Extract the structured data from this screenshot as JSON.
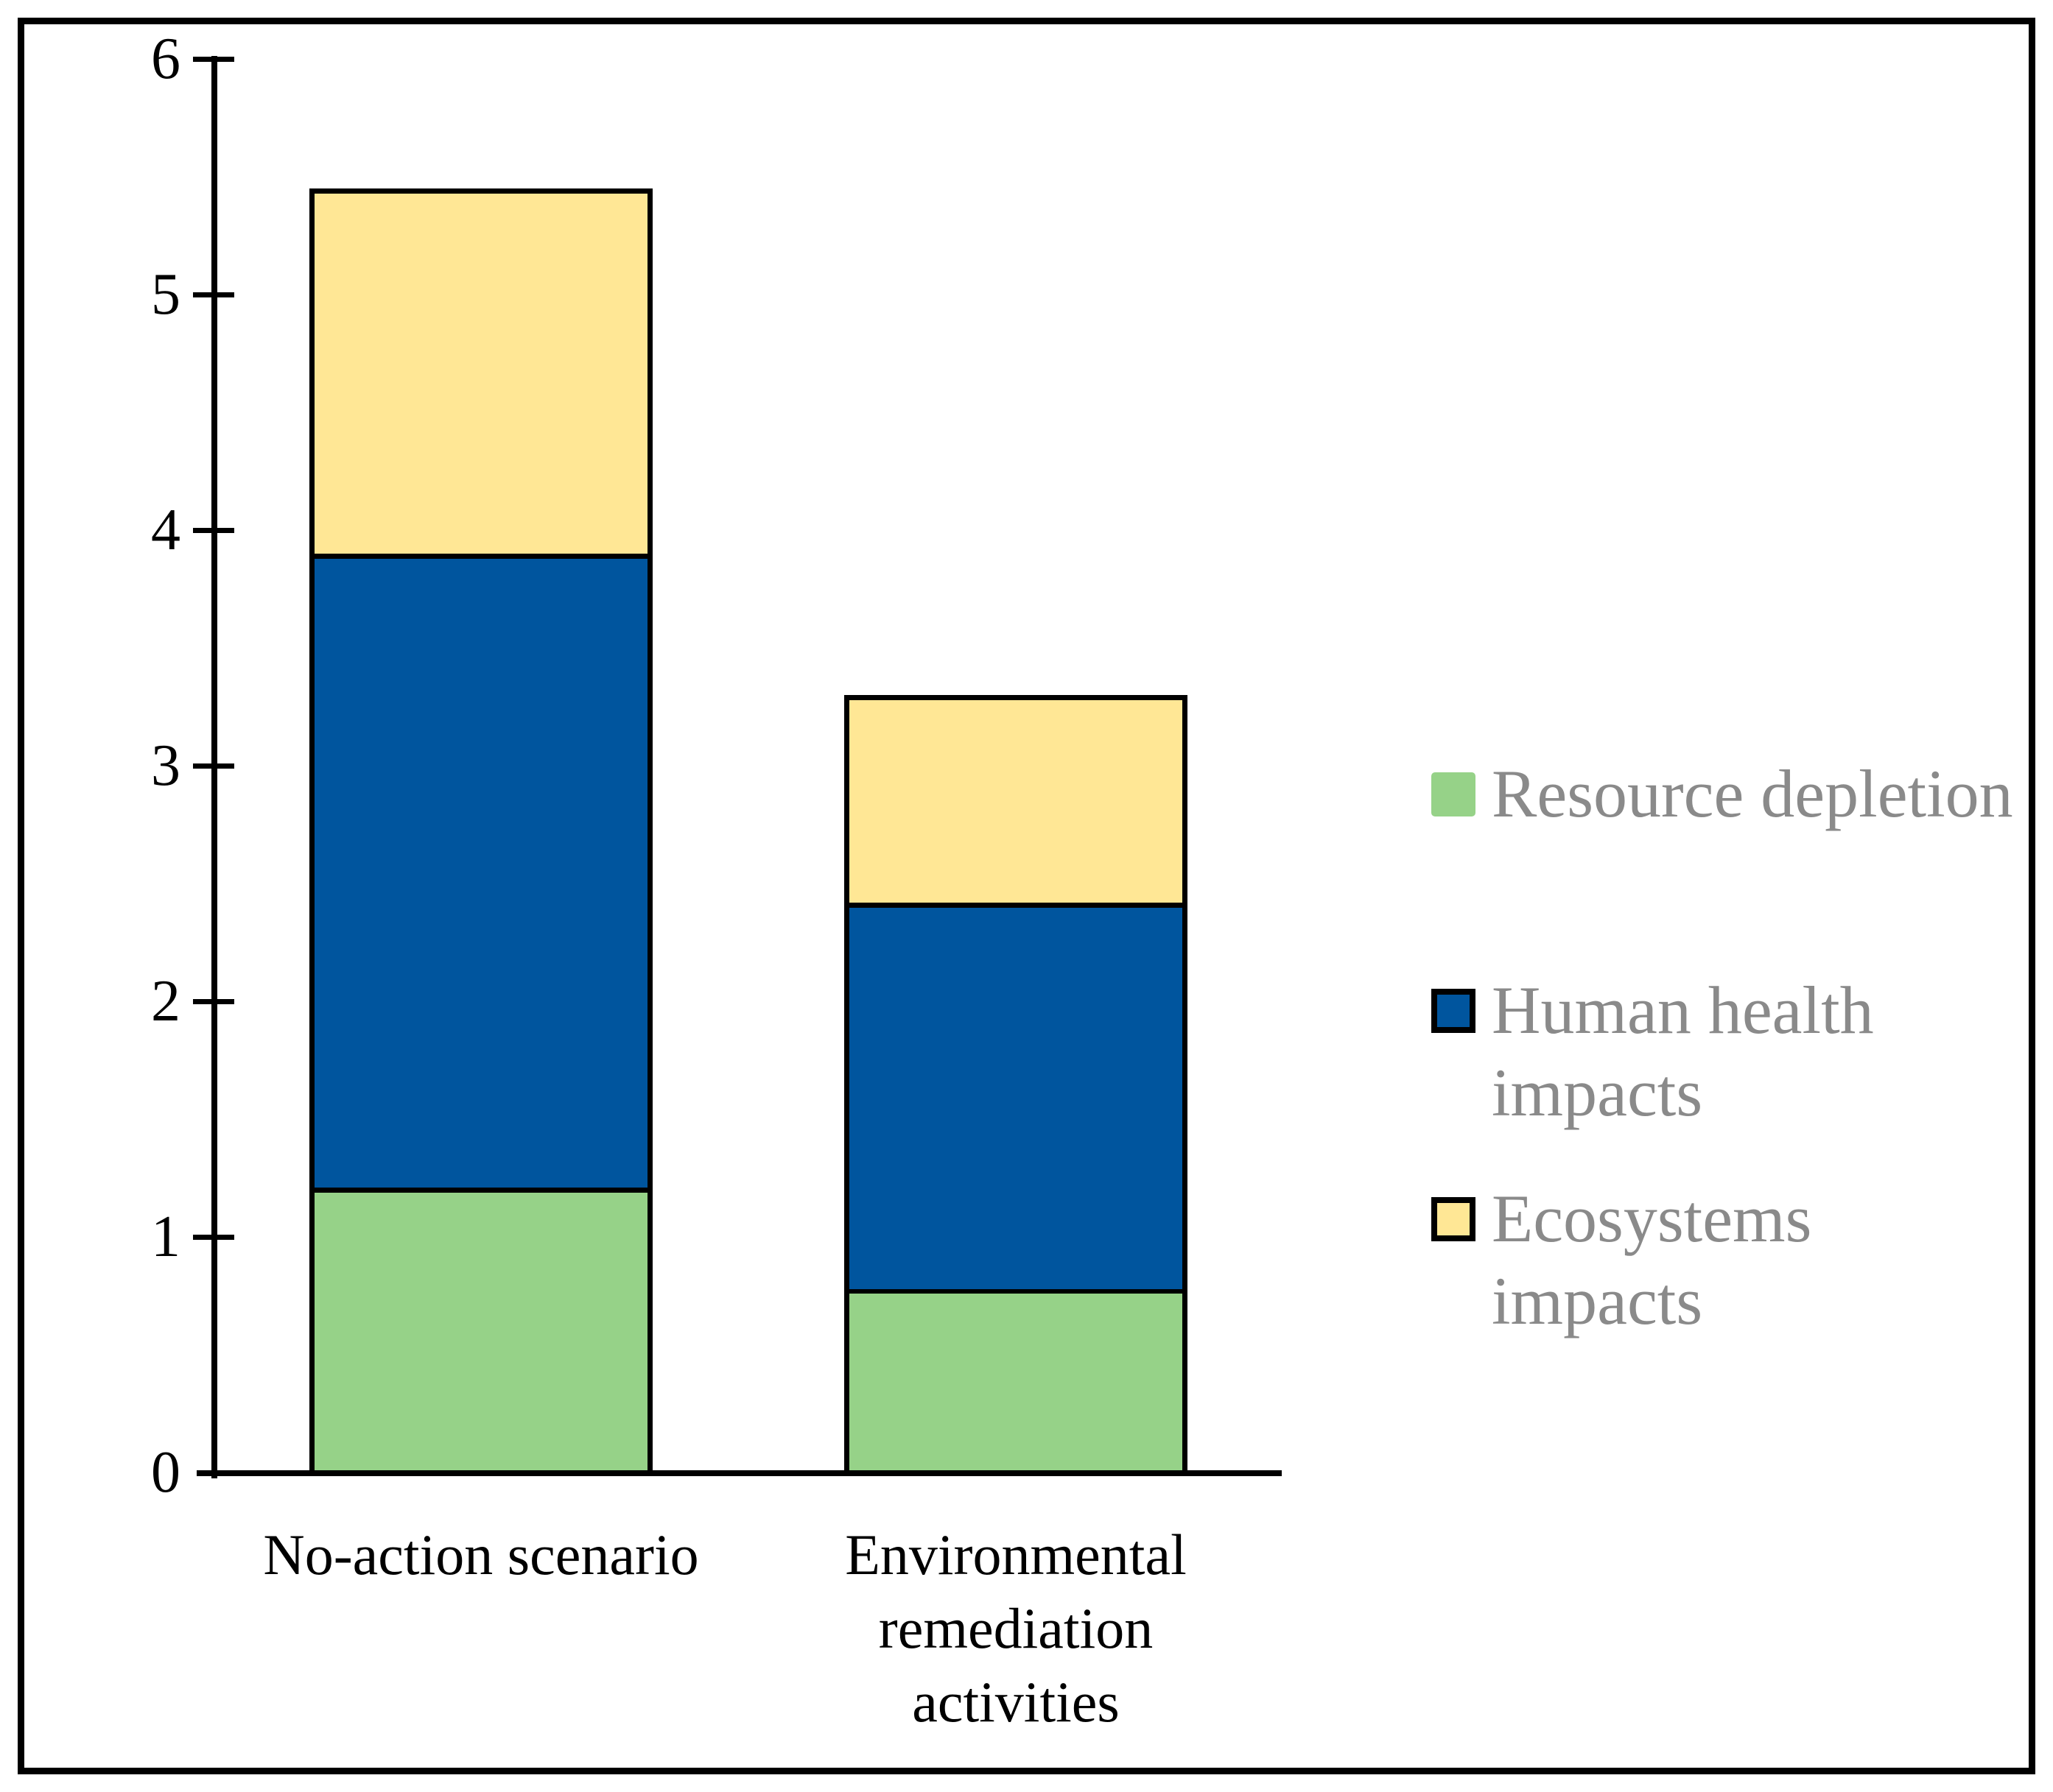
{
  "chart_data": {
    "type": "bar",
    "stacked": true,
    "title": "",
    "xlabel": "",
    "ylabel": "",
    "categories": [
      "No-action scenario",
      "Environmental remediation activities"
    ],
    "series": [
      {
        "name": "Resource depletion",
        "color": "#96D288",
        "values": [
          1.21,
          0.78
        ]
      },
      {
        "name": "Human health impacts",
        "color": "#00559E",
        "values": [
          2.69,
          1.64
        ]
      },
      {
        "name": "Ecosystems impacts",
        "color": "#FFE795",
        "values": [
          1.55,
          0.88
        ]
      }
    ],
    "stack_totals": [
      5.45,
      3.3
    ],
    "ylim": [
      0,
      6
    ],
    "yticks": [
      0,
      1,
      2,
      3,
      4,
      5,
      6
    ],
    "grid": false,
    "legend_position": "right"
  },
  "y_axis": {
    "tick_labels": [
      "0",
      "1",
      "2",
      "3",
      "4",
      "5",
      "6"
    ]
  },
  "x_axis": {
    "labels": [
      {
        "lines": [
          "No-action scenario"
        ]
      },
      {
        "lines": [
          "Environmental",
          "remediation",
          "activities"
        ]
      }
    ]
  },
  "legend": {
    "items": [
      {
        "label": "Resource depletion",
        "lines": [
          "Resource depletion"
        ],
        "swatch_color": "#96D288",
        "swatch_border": false
      },
      {
        "label": "Human health impacts",
        "lines": [
          "Human health",
          "impacts"
        ],
        "swatch_color": "#00559E",
        "swatch_border": true
      },
      {
        "label": "Ecosystems impacts",
        "lines": [
          "Ecosystems",
          "impacts"
        ],
        "swatch_color": "#FFE795",
        "swatch_border": true
      }
    ]
  },
  "colors": {
    "background": "#FFFFFF",
    "frame": "#000000",
    "axis": "#000000",
    "bar_outline": "#000000",
    "green": "#96D288",
    "blue": "#00559E",
    "yellow": "#FFE795",
    "legend_text": "#8A8A8A",
    "tick_label_text": "#000000",
    "category_label_text": "#000000"
  }
}
